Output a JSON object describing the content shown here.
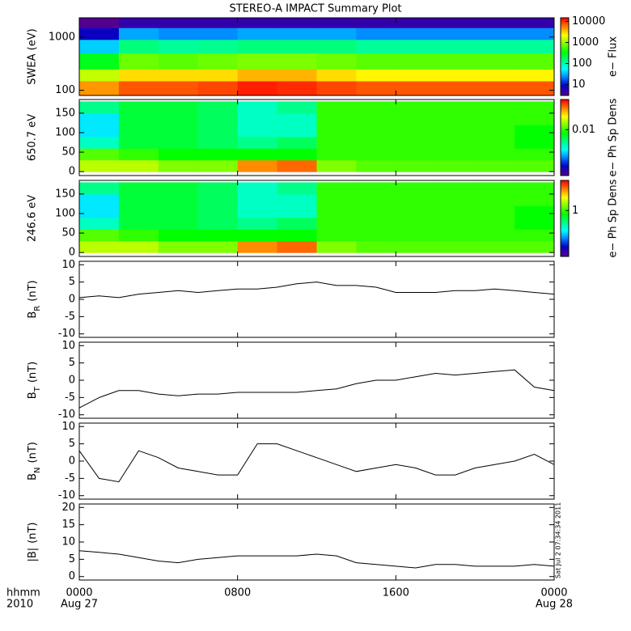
{
  "title": "STEREO-A IMPACT Summary Plot",
  "x_corner_labels": [
    "hhmm",
    "2010"
  ],
  "x_date_labels": [
    {
      "value": 0,
      "label": "Aug 27"
    },
    {
      "value": 24,
      "label": "Aug 28"
    }
  ],
  "timestamp": "Sat Jul  2 07:34:34 2011",
  "chart_data": [
    {
      "type": "heatmap",
      "y_label": "SWEA (eV)",
      "log_y": true,
      "ylim": [
        80,
        2300
      ],
      "yticks": [
        100,
        1000
      ],
      "xlim": [
        0,
        24
      ],
      "xticks": [
        0,
        8,
        16,
        24
      ],
      "x_edges": [
        0,
        2,
        4,
        6,
        8,
        10,
        12,
        14,
        16,
        18,
        20,
        22,
        24
      ],
      "y_edges": [
        80,
        150,
        250,
        500,
        900,
        1500,
        2300
      ],
      "values": [
        [
          5000,
          8000,
          8000,
          9000,
          12000,
          11000,
          9000,
          8000,
          8000,
          8000,
          8000,
          8000
        ],
        [
          1500,
          3000,
          3000,
          3000,
          4000,
          4000,
          3000,
          2500,
          2500,
          2500,
          2500,
          2500
        ],
        [
          300,
          800,
          700,
          800,
          900,
          900,
          800,
          700,
          700,
          700,
          700,
          700
        ],
        [
          40,
          150,
          120,
          130,
          150,
          150,
          150,
          120,
          120,
          120,
          120,
          120
        ],
        [
          8,
          30,
          25,
          25,
          30,
          30,
          30,
          25,
          25,
          25,
          25,
          25
        ],
        [
          3,
          5,
          5,
          5,
          5,
          5,
          5,
          5,
          5,
          5,
          5,
          5
        ]
      ],
      "colorbar": {
        "label": "e− Flux",
        "log": true,
        "clim": [
          3,
          15000
        ],
        "ticks": [
          10,
          100,
          1000,
          10000
        ]
      }
    },
    {
      "type": "heatmap",
      "y_label": "650.7 eV",
      "log_y": false,
      "ylim": [
        -10,
        185
      ],
      "yticks": [
        0,
        50,
        100,
        150
      ],
      "xlim": [
        0,
        24
      ],
      "xticks": [
        0,
        8,
        16,
        24
      ],
      "x_edges": [
        0,
        2,
        4,
        6,
        8,
        10,
        12,
        14,
        16,
        18,
        20,
        22,
        24
      ],
      "y_edges": [
        0,
        30,
        60,
        90,
        120,
        150,
        180
      ],
      "values": [
        [
          0.02,
          0.02,
          0.015,
          0.015,
          0.05,
          0.06,
          0.015,
          0.012,
          0.012,
          0.012,
          0.012,
          0.012
        ],
        [
          0.012,
          0.01,
          0.008,
          0.008,
          0.008,
          0.008,
          0.01,
          0.01,
          0.01,
          0.01,
          0.01,
          0.01
        ],
        [
          0.003,
          0.006,
          0.006,
          0.005,
          0.004,
          0.005,
          0.01,
          0.01,
          0.01,
          0.01,
          0.01,
          0.008
        ],
        [
          0.002,
          0.006,
          0.006,
          0.005,
          0.003,
          0.003,
          0.01,
          0.01,
          0.01,
          0.01,
          0.01,
          0.008
        ],
        [
          0.002,
          0.006,
          0.006,
          0.005,
          0.003,
          0.003,
          0.01,
          0.01,
          0.01,
          0.01,
          0.01,
          0.01
        ],
        [
          0.004,
          0.006,
          0.006,
          0.005,
          0.003,
          0.004,
          0.01,
          0.01,
          0.01,
          0.01,
          0.01,
          0.01
        ]
      ],
      "colorbar": {
        "label": "e− Ph Sp Dens",
        "log": true,
        "clim": [
          0.0003,
          0.1
        ],
        "ticks": [
          0.01
        ]
      }
    },
    {
      "type": "heatmap",
      "y_label": "246.6 eV",
      "log_y": false,
      "ylim": [
        -10,
        185
      ],
      "yticks": [
        0,
        50,
        100,
        150
      ],
      "xlim": [
        0,
        24
      ],
      "xticks": [
        0,
        8,
        16,
        24
      ],
      "x_edges": [
        0,
        2,
        4,
        6,
        8,
        10,
        12,
        14,
        16,
        18,
        20,
        22,
        24
      ],
      "y_edges": [
        0,
        30,
        60,
        90,
        120,
        150,
        180
      ],
      "values": [
        [
          2,
          2,
          1.5,
          1.5,
          5,
          6,
          1.5,
          1.2,
          1.2,
          1.2,
          1.2,
          1.2
        ],
        [
          1.2,
          1,
          0.8,
          0.8,
          0.8,
          0.8,
          1,
          1,
          1,
          1,
          1,
          1
        ],
        [
          0.3,
          0.6,
          0.6,
          0.5,
          0.4,
          0.5,
          1,
          1,
          1,
          1,
          1,
          0.8
        ],
        [
          0.2,
          0.6,
          0.6,
          0.5,
          0.3,
          0.3,
          1,
          1,
          1,
          1,
          1,
          0.8
        ],
        [
          0.2,
          0.6,
          0.6,
          0.5,
          0.3,
          0.3,
          1,
          1,
          1,
          1,
          1,
          1
        ],
        [
          0.4,
          0.6,
          0.6,
          0.5,
          0.3,
          0.4,
          1,
          1,
          1,
          1,
          1,
          1
        ]
      ],
      "colorbar": {
        "label": "e− Ph Sp Dens",
        "log": true,
        "clim": [
          0.03,
          10
        ],
        "ticks": [
          1
        ]
      }
    },
    {
      "type": "line",
      "y_label": {
        "base": "B",
        "sub": "R",
        "unit": "(nT)"
      },
      "ylim": [
        -11,
        11
      ],
      "yticks": [
        -10,
        -5,
        0,
        5,
        10
      ],
      "xlim": [
        0,
        24
      ],
      "xticks": [
        0,
        8,
        16,
        24
      ],
      "x": [
        0,
        1,
        2,
        3,
        4,
        5,
        6,
        7,
        8,
        9,
        10,
        11,
        12,
        13,
        14,
        15,
        16,
        17,
        18,
        19,
        20,
        21,
        22,
        23,
        24
      ],
      "values": [
        0.5,
        1,
        0.5,
        1.5,
        2,
        2.5,
        2,
        2.5,
        3,
        3,
        3.5,
        4.5,
        5,
        4,
        4,
        3.5,
        2,
        2,
        2,
        2.5,
        2.5,
        3,
        2.5,
        2,
        1.5
      ]
    },
    {
      "type": "line",
      "y_label": {
        "base": "B",
        "sub": "T",
        "unit": "(nT)"
      },
      "ylim": [
        -11,
        11
      ],
      "yticks": [
        -10,
        -5,
        0,
        5,
        10
      ],
      "xlim": [
        0,
        24
      ],
      "xticks": [
        0,
        8,
        16,
        24
      ],
      "x": [
        0,
        1,
        2,
        3,
        4,
        5,
        6,
        7,
        8,
        9,
        10,
        11,
        12,
        13,
        14,
        15,
        16,
        17,
        18,
        19,
        20,
        21,
        22,
        23,
        24
      ],
      "values": [
        -8,
        -5,
        -3,
        -3,
        -4,
        -4.5,
        -4,
        -4,
        -3.5,
        -3.5,
        -3.5,
        -3.5,
        -3,
        -2.5,
        -1,
        0,
        0,
        1,
        2,
        1.5,
        2,
        2.5,
        3,
        -2,
        -3
      ]
    },
    {
      "type": "line",
      "y_label": {
        "base": "B",
        "sub": "N",
        "unit": "(nT)"
      },
      "ylim": [
        -11,
        11
      ],
      "yticks": [
        -10,
        -5,
        0,
        5,
        10
      ],
      "xlim": [
        0,
        24
      ],
      "xticks": [
        0,
        8,
        16,
        24
      ],
      "x": [
        0,
        1,
        2,
        3,
        4,
        5,
        6,
        7,
        8,
        9,
        10,
        11,
        12,
        13,
        14,
        15,
        16,
        17,
        18,
        19,
        20,
        21,
        22,
        23,
        24
      ],
      "values": [
        3,
        -5,
        -6,
        3,
        1,
        -2,
        -3,
        -4,
        -4,
        5,
        5,
        3,
        1,
        -1,
        -3,
        -2,
        -1,
        -2,
        -4,
        -4,
        -2,
        -1,
        0,
        2,
        -1
      ]
    },
    {
      "type": "line",
      "y_label": {
        "base": "|B|",
        "unit": "(nT)"
      },
      "ylim": [
        -1,
        21
      ],
      "yticks": [
        0,
        5,
        10,
        15,
        20
      ],
      "xlim": [
        0,
        24
      ],
      "xticks": [
        {
          "value": 0,
          "label": "0000"
        },
        {
          "value": 8,
          "label": "0800"
        },
        {
          "value": 16,
          "label": "1600"
        },
        {
          "value": 24,
          "label": "0000"
        }
      ],
      "x": [
        0,
        1,
        2,
        3,
        4,
        5,
        6,
        7,
        8,
        9,
        10,
        11,
        12,
        13,
        14,
        15,
        16,
        17,
        18,
        19,
        20,
        21,
        22,
        23,
        24
      ],
      "values": [
        7.5,
        7,
        6.5,
        5.5,
        4.5,
        4,
        5,
        5.5,
        6,
        6,
        6,
        6,
        6.5,
        6,
        4,
        3.5,
        3,
        2.5,
        3.5,
        3.5,
        3,
        3,
        3,
        3.5,
        3
      ]
    }
  ]
}
